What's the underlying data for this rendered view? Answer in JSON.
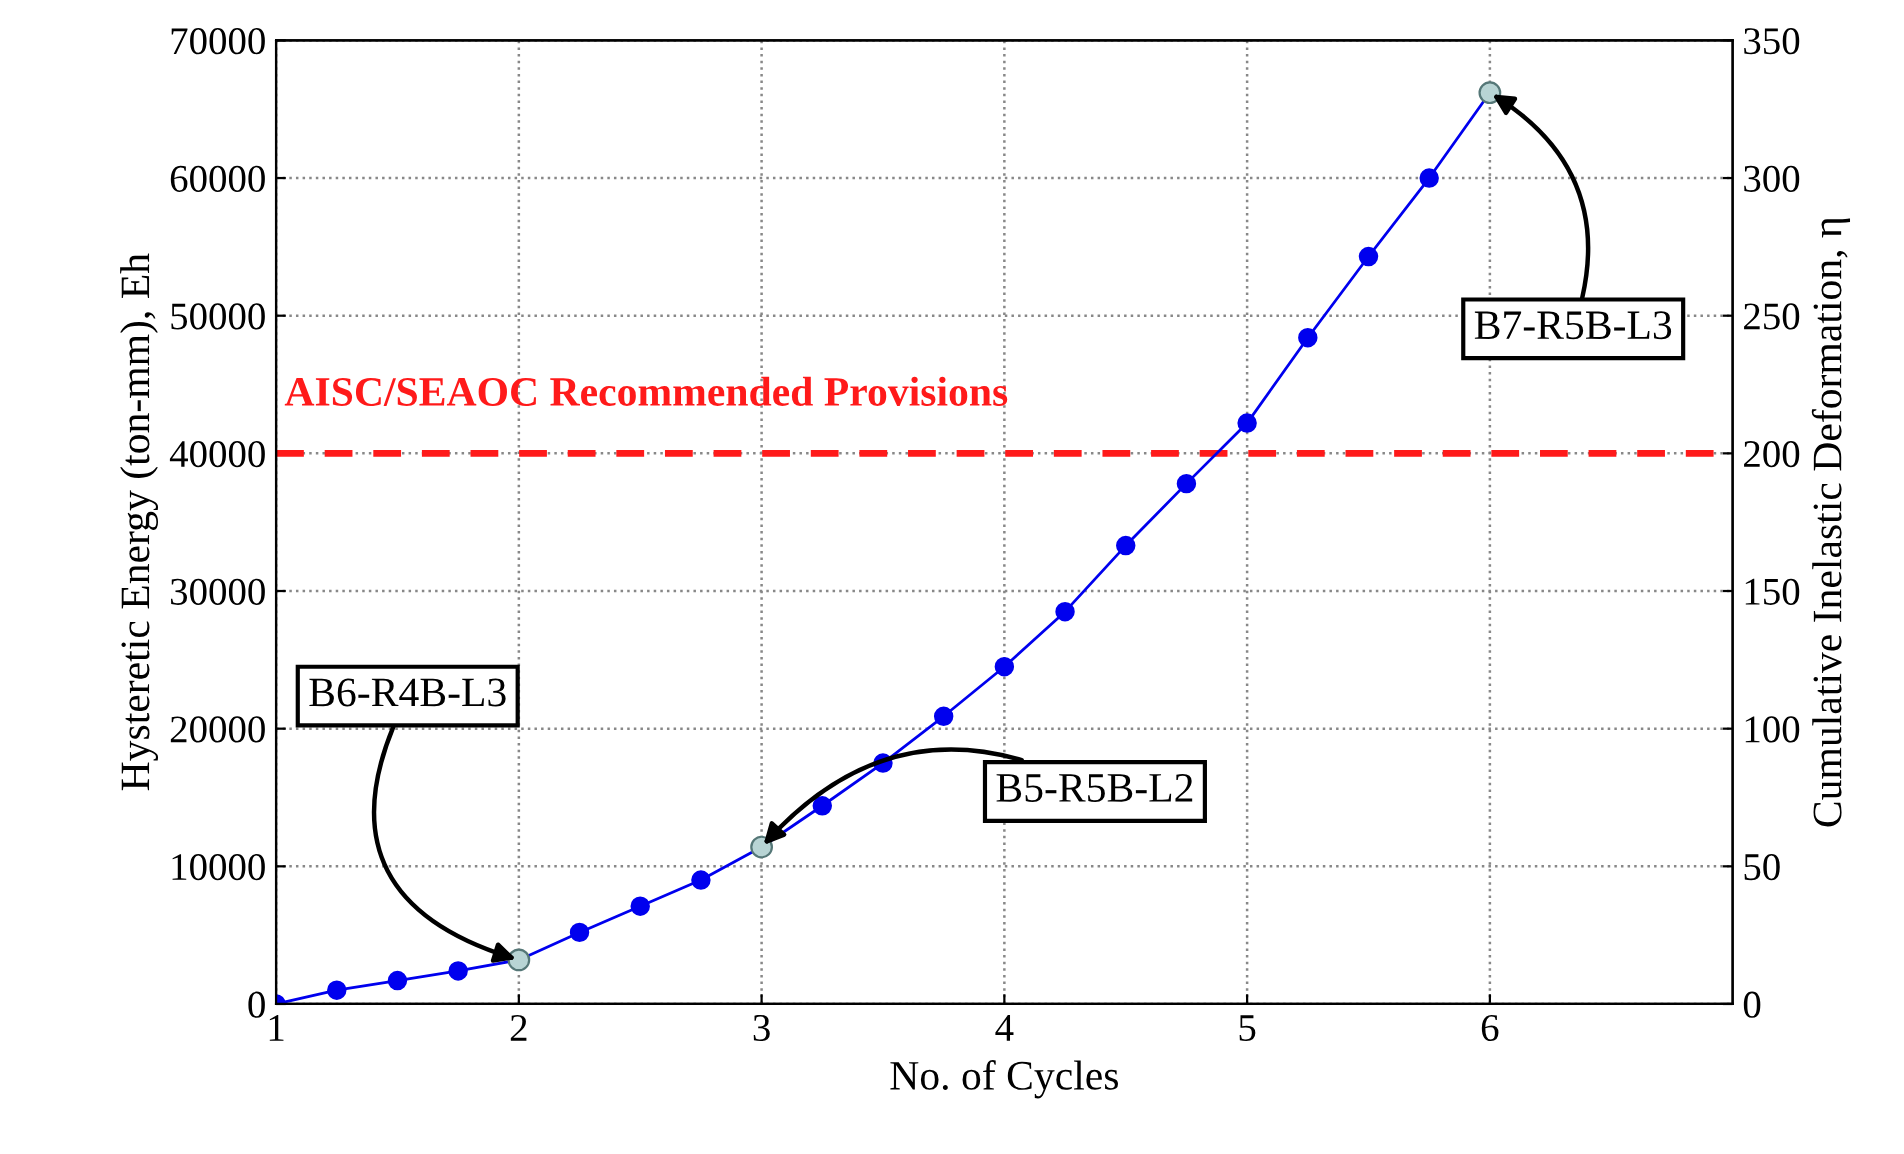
{
  "chart_data": {
    "type": "line",
    "xlabel": "No. of Cycles",
    "ylabel": "Hysteretic Energy (ton-mm), Eh",
    "y2label": "Cumulative Inelastic Deformation, η",
    "x": [
      1,
      1.25,
      1.5,
      1.75,
      2,
      2.25,
      2.5,
      2.75,
      3,
      3.25,
      3.5,
      3.75,
      4,
      4.25,
      4.5,
      4.75,
      5,
      5.25,
      5.5,
      5.75,
      6
    ],
    "series": [
      {
        "color": "#0000ee",
        "values": [
          0,
          1000,
          1700,
          2400,
          3200,
          5200,
          7100,
          9000,
          11400,
          14400,
          17500,
          20900,
          24500,
          28500,
          33300,
          37800,
          42200,
          48400,
          54300,
          60000,
          66200
        ]
      },
      {
        "type": "scatter",
        "color": "#b8d4d4",
        "x": [
          2,
          3,
          6
        ],
        "values": [
          3200,
          11400,
          66200
        ]
      }
    ],
    "xlim": [
      1,
      7
    ],
    "xticks": [
      1,
      2,
      3,
      4,
      5,
      6
    ],
    "ylim": [
      0,
      70000
    ],
    "yticks": [
      0,
      10000,
      20000,
      30000,
      40000,
      50000,
      60000,
      70000
    ],
    "y2lim": [
      0,
      350
    ],
    "y2ticks": [
      0,
      50,
      100,
      150,
      200,
      250,
      300,
      350
    ],
    "ref_lines": [
      {
        "axis": "y",
        "value": 40000,
        "label": "AISC/SEAOC Recommended Provisions",
        "color": "#ff1a1a",
        "line_style": "dashed"
      }
    ],
    "annotations": [
      {
        "text": "B6-R4B-L3",
        "x": 2,
        "y": 3200
      },
      {
        "text": "B5-R5B-L2",
        "x": 3,
        "y": 11400
      },
      {
        "text": "B7-R5B-L3",
        "x": 6,
        "y": 66200
      }
    ],
    "grid": true,
    "marker": "circle",
    "line_style": "solid",
    "legend": false
  }
}
